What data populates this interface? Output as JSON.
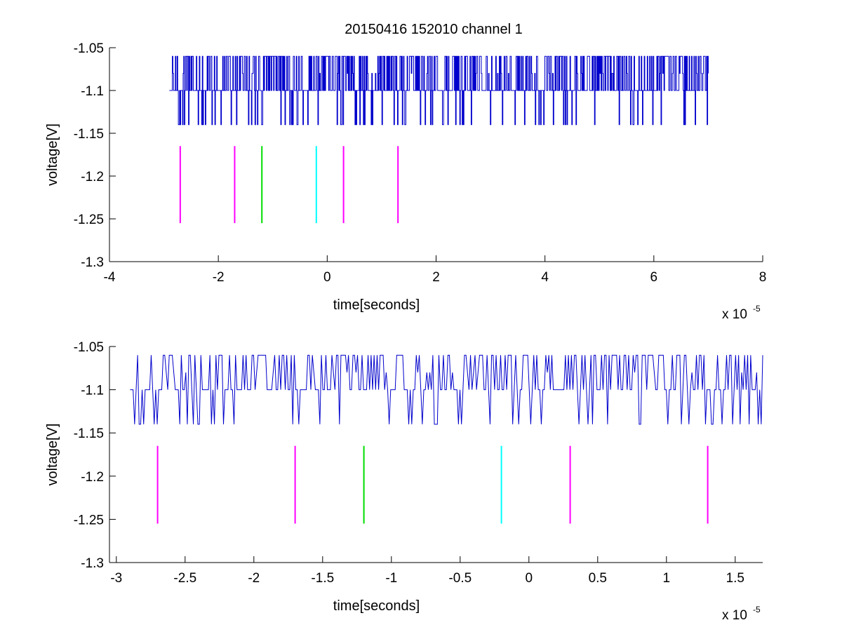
{
  "figure_title": "20150416 152010 channel 1",
  "chart_data": [
    {
      "type": "line",
      "title": "20150416 152010 channel 1",
      "xlabel": "time[seconds]",
      "ylabel": "voltage[V]",
      "x_exponent_label": "x 10",
      "x_exponent": "-5",
      "xlim": [
        -4,
        8
      ],
      "ylim": [
        -1.3,
        -1.05
      ],
      "xticks": [
        -4,
        -2,
        0,
        2,
        4,
        6,
        8
      ],
      "xtick_labels": [
        "-4",
        "-2",
        "0",
        "2",
        "4",
        "6",
        "8"
      ],
      "yticks": [
        -1.3,
        -1.25,
        -1.2,
        -1.15,
        -1.1,
        -1.05
      ],
      "ytick_labels": [
        "-1.3",
        "-1.25",
        "-1.2",
        "-1.15",
        "-1.1",
        "-1.05"
      ],
      "signal": {
        "color": "#0000cc",
        "x_range": [
          -2.9,
          7.0
        ],
        "baseline": -1.1,
        "upper": -1.06,
        "lower": -1.14
      },
      "markers": [
        {
          "x": -2.7,
          "y0": -1.255,
          "y1": -1.165,
          "color": "#ff00ff"
        },
        {
          "x": -1.7,
          "y0": -1.255,
          "y1": -1.165,
          "color": "#ff00ff"
        },
        {
          "x": -1.2,
          "y0": -1.255,
          "y1": -1.165,
          "color": "#00dd00"
        },
        {
          "x": -0.2,
          "y0": -1.255,
          "y1": -1.165,
          "color": "#00ffff"
        },
        {
          "x": 0.3,
          "y0": -1.255,
          "y1": -1.165,
          "color": "#ff00ff"
        },
        {
          "x": 1.3,
          "y0": -1.255,
          "y1": -1.165,
          "color": "#ff00ff"
        }
      ]
    },
    {
      "type": "line",
      "title": "",
      "xlabel": "time[seconds]",
      "ylabel": "voltage[V]",
      "x_exponent_label": "x 10",
      "x_exponent": "-5",
      "xlim": [
        -3.05,
        1.7
      ],
      "ylim": [
        -1.3,
        -1.05
      ],
      "xticks": [
        -3,
        -2.5,
        -2,
        -1.5,
        -1,
        -0.5,
        0,
        0.5,
        1,
        1.5
      ],
      "xtick_labels": [
        "-3",
        "-2.5",
        "-2",
        "-1.5",
        "-1",
        "-0.5",
        "0",
        "0.5",
        "1",
        "1.5"
      ],
      "yticks": [
        -1.3,
        -1.25,
        -1.2,
        -1.15,
        -1.1,
        -1.05
      ],
      "ytick_labels": [
        "-1.3",
        "-1.25",
        "-1.2",
        "-1.15",
        "-1.1",
        "-1.05"
      ],
      "signal": {
        "color": "#0000cc",
        "x_range": [
          -2.9,
          1.7
        ],
        "baseline": -1.1,
        "upper": -1.06,
        "lower": -1.14
      },
      "markers": [
        {
          "x": -2.7,
          "y0": -1.255,
          "y1": -1.165,
          "color": "#ff00ff"
        },
        {
          "x": -1.7,
          "y0": -1.255,
          "y1": -1.165,
          "color": "#ff00ff"
        },
        {
          "x": -1.2,
          "y0": -1.255,
          "y1": -1.165,
          "color": "#00dd00"
        },
        {
          "x": -0.2,
          "y0": -1.255,
          "y1": -1.165,
          "color": "#00ffff"
        },
        {
          "x": 0.3,
          "y0": -1.255,
          "y1": -1.165,
          "color": "#ff00ff"
        },
        {
          "x": 1.3,
          "y0": -1.255,
          "y1": -1.165,
          "color": "#ff00ff"
        }
      ]
    }
  ]
}
